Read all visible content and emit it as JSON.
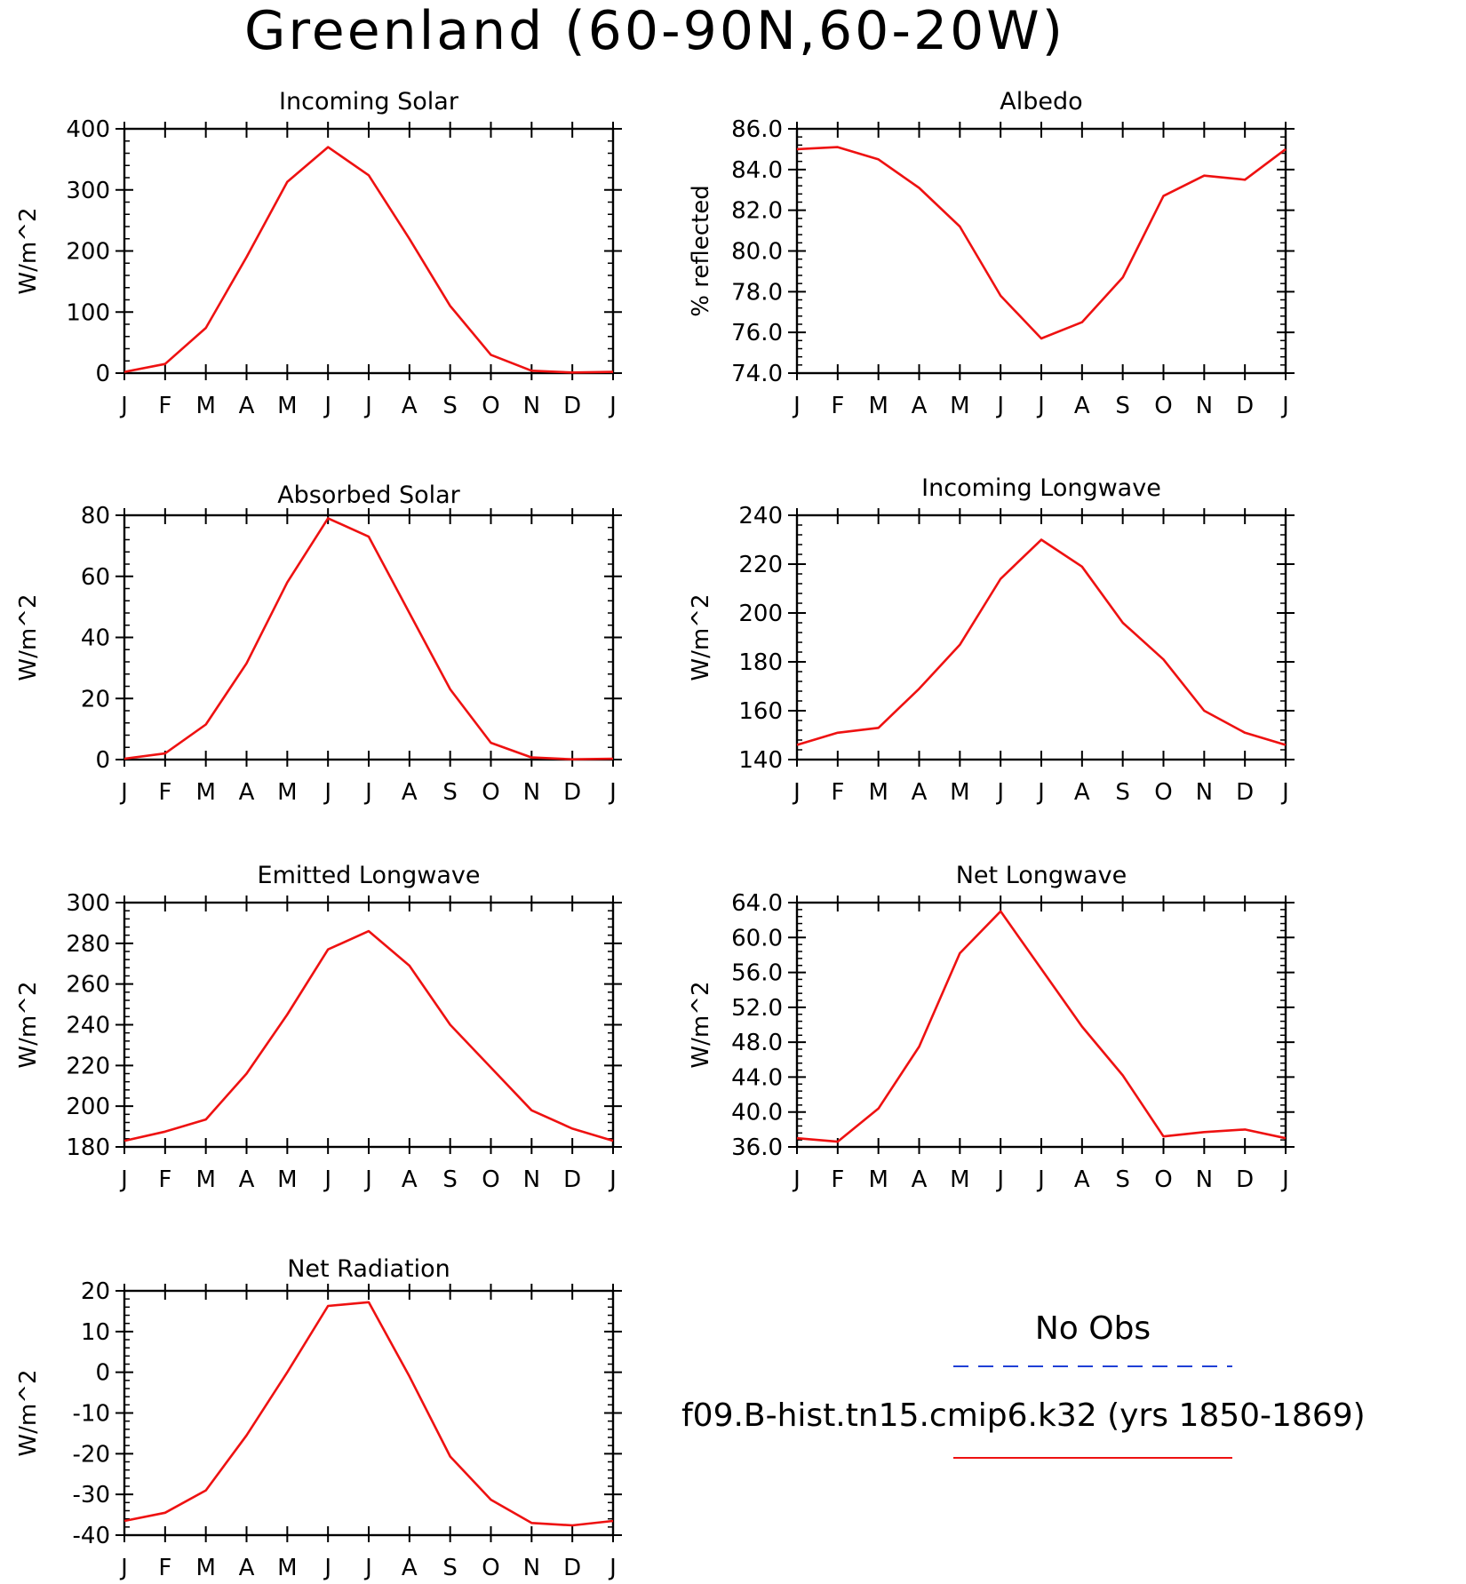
{
  "figure": {
    "title": "Greenland (60-90N,60-20W)",
    "months": [
      "J",
      "F",
      "M",
      "A",
      "M",
      "J",
      "J",
      "A",
      "S",
      "O",
      "N",
      "D",
      "J"
    ]
  },
  "legend": {
    "obs_label": "No Obs",
    "obs_color": "#1f3fd6",
    "model_label": "f09.B-hist.tn15.cmip6.k32 (yrs 1850-1869)",
    "model_color": "#ee1111"
  },
  "chart_data": [
    {
      "type": "line",
      "title": "Incoming Solar",
      "ylabel": "W/m^2",
      "ylim": [
        0,
        400
      ],
      "yticks": [
        0,
        100,
        200,
        300,
        400
      ],
      "ytick_labels": [
        "0",
        "100",
        "200",
        "300",
        "400"
      ],
      "series": [
        {
          "values": [
            2,
            15,
            74,
            190,
            313,
            370,
            324,
            220,
            110,
            30,
            4,
            1,
            2
          ]
        }
      ]
    },
    {
      "type": "line",
      "title": "Albedo",
      "ylabel": "% reflected",
      "ylim": [
        74,
        86
      ],
      "yticks": [
        74,
        76,
        78,
        80,
        82,
        84,
        86
      ],
      "ytick_labels": [
        "74.0",
        "76.0",
        "78.0",
        "80.0",
        "82.0",
        "84.0",
        "86.0"
      ],
      "series": [
        {
          "values": [
            85.0,
            85.1,
            84.5,
            83.1,
            81.2,
            77.8,
            75.7,
            76.5,
            78.7,
            82.7,
            83.7,
            83.5,
            85.0
          ]
        }
      ]
    },
    {
      "type": "line",
      "title": "Absorbed Solar",
      "ylabel": "W/m^2",
      "ylim": [
        0,
        80
      ],
      "yticks": [
        0,
        20,
        40,
        60,
        80
      ],
      "ytick_labels": [
        "0",
        "20",
        "40",
        "60",
        "80"
      ],
      "series": [
        {
          "values": [
            0.3,
            2,
            11.5,
            31.5,
            58,
            79,
            73,
            48,
            23,
            5.5,
            0.7,
            0.1,
            0.3
          ]
        }
      ]
    },
    {
      "type": "line",
      "title": "Incoming Longwave",
      "ylabel": "W/m^2",
      "ylim": [
        140,
        240
      ],
      "yticks": [
        140,
        160,
        180,
        200,
        220,
        240
      ],
      "ytick_labels": [
        "140",
        "160",
        "180",
        "200",
        "220",
        "240"
      ],
      "series": [
        {
          "values": [
            146,
            151,
            153,
            169,
            187,
            214,
            230,
            219,
            196,
            181,
            160,
            151,
            146
          ]
        }
      ]
    },
    {
      "type": "line",
      "title": "Emitted Longwave",
      "ylabel": "W/m^2",
      "ylim": [
        180,
        300
      ],
      "yticks": [
        180,
        200,
        220,
        240,
        260,
        280,
        300
      ],
      "ytick_labels": [
        "180",
        "200",
        "220",
        "240",
        "260",
        "280",
        "300"
      ],
      "series": [
        {
          "values": [
            183,
            187.5,
            193.5,
            216,
            245,
            277,
            286,
            269,
            240,
            219,
            198,
            189,
            183
          ]
        }
      ]
    },
    {
      "type": "line",
      "title": "Net Longwave",
      "ylabel": "W/m^2",
      "ylim": [
        36,
        64
      ],
      "yticks": [
        36,
        40,
        44,
        48,
        52,
        56,
        60,
        64
      ],
      "ytick_labels": [
        "36.0",
        "40.0",
        "44.0",
        "48.0",
        "52.0",
        "56.0",
        "60.0",
        "64.0"
      ],
      "series": [
        {
          "values": [
            37.0,
            36.6,
            40.4,
            47.5,
            58.2,
            63.0,
            56.4,
            49.8,
            44.2,
            37.2,
            37.7,
            38.0,
            37.0
          ]
        }
      ]
    },
    {
      "type": "line",
      "title": "Net Radiation",
      "ylabel": "W/m^2",
      "ylim": [
        -40,
        20
      ],
      "yticks": [
        -40,
        -30,
        -20,
        -10,
        0,
        10,
        20
      ],
      "ytick_labels": [
        "-40",
        "-30",
        "-20",
        "-10",
        "0",
        "10",
        "20"
      ],
      "series": [
        {
          "values": [
            -36.5,
            -34.5,
            -29,
            -15.5,
            0,
            16.3,
            17.2,
            -1,
            -20.7,
            -31.3,
            -37,
            -37.6,
            -36.5
          ]
        }
      ]
    }
  ]
}
